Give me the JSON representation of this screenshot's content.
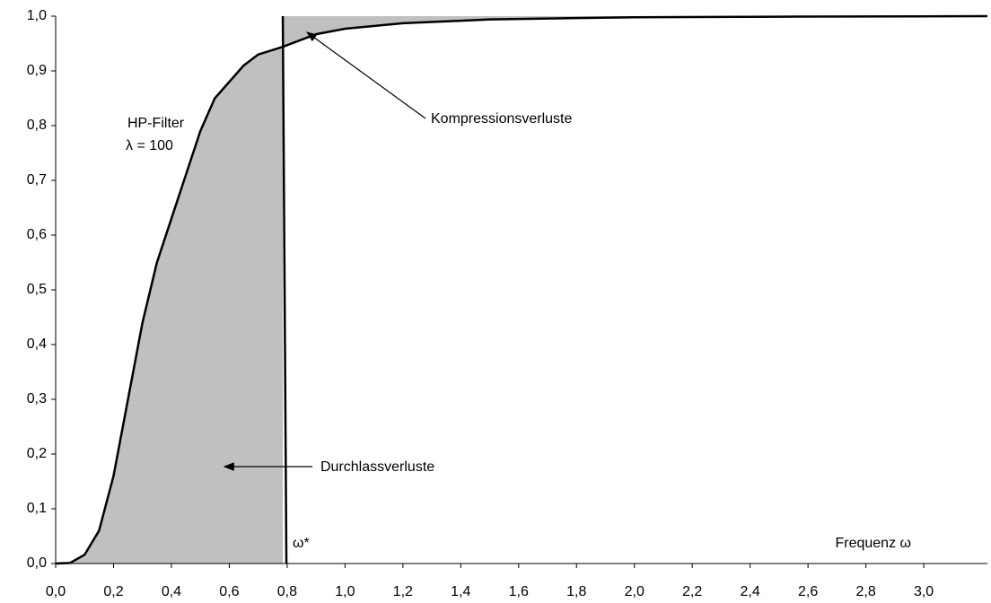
{
  "chart_data": {
    "type": "line",
    "x": [
      0,
      0.05,
      0.1,
      0.15,
      0.2,
      0.25,
      0.3,
      0.35,
      0.4,
      0.45,
      0.5,
      0.55,
      0.6,
      0.65,
      0.7,
      0.785,
      0.9,
      1.0,
      1.2,
      1.5,
      2.0,
      2.5,
      3.22
    ],
    "series": [
      {
        "name": "HP-Filter",
        "color": "#000000",
        "values": [
          0,
          0.001,
          0.016,
          0.06,
          0.16,
          0.3,
          0.44,
          0.55,
          0.63,
          0.71,
          0.79,
          0.85,
          0.88,
          0.91,
          0.93,
          0.944,
          0.967,
          0.977,
          0.987,
          0.994,
          0.998,
          0.999,
          1.0
        ]
      }
    ],
    "cutoff": 0.785,
    "fill_color": "#c0c0c0",
    "xlim": [
      0,
      3.22
    ],
    "ylim": [
      0,
      1
    ],
    "xticks": [
      {
        "value": 0,
        "label": "0,0"
      },
      {
        "value": 0.2,
        "label": "0,2"
      },
      {
        "value": 0.4,
        "label": "0,4"
      },
      {
        "value": 0.6,
        "label": "0,6"
      },
      {
        "value": 0.8,
        "label": "0,8"
      },
      {
        "value": 1.0,
        "label": "1,0"
      },
      {
        "value": 1.2,
        "label": "1,2"
      },
      {
        "value": 1.4,
        "label": "1,4"
      },
      {
        "value": 1.6,
        "label": "1,6"
      },
      {
        "value": 1.8,
        "label": "1,8"
      },
      {
        "value": 2.0,
        "label": "2,0"
      },
      {
        "value": 2.2,
        "label": "2,2"
      },
      {
        "value": 2.4,
        "label": "2,4"
      },
      {
        "value": 2.6,
        "label": "2,6"
      },
      {
        "value": 2.8,
        "label": "2,8"
      },
      {
        "value": 3.0,
        "label": "3,0"
      }
    ],
    "yticks": [
      {
        "value": 0,
        "label": "0,0"
      },
      {
        "value": 0.1,
        "label": "0,1"
      },
      {
        "value": 0.2,
        "label": "0,2"
      },
      {
        "value": 0.3,
        "label": "0,3"
      },
      {
        "value": 0.4,
        "label": "0,4"
      },
      {
        "value": 0.5,
        "label": "0,5"
      },
      {
        "value": 0.6,
        "label": "0,6"
      },
      {
        "value": 0.7,
        "label": "0,7"
      },
      {
        "value": 0.8,
        "label": "0,8"
      },
      {
        "value": 0.9,
        "label": "0,9"
      },
      {
        "value": 1.0,
        "label": "1,0"
      }
    ],
    "grid": false,
    "xlabel": "Frequenz ω",
    "annotations": [
      "λ = 100",
      "Kompressionsverluste",
      "Durchlassverluste",
      "ω*"
    ]
  }
}
